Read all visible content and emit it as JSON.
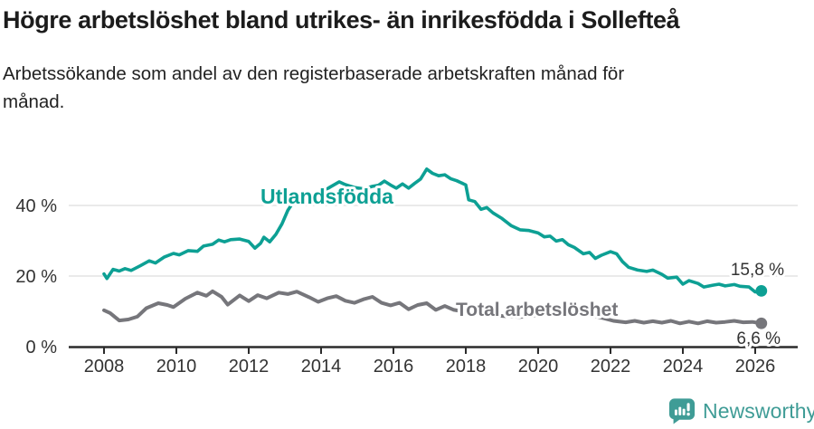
{
  "title": "Högre arbetslöshet bland utrikes- än inrikesfödda i Sollefteå",
  "subtitle": "Arbetssökande som andel av den registerbaserade arbetskraften månad för månad.",
  "footer": {
    "brand": "Newsworthy"
  },
  "colors": {
    "foreign_line": "#0da094",
    "total_line": "#76767b",
    "axis": "#2b2b2b",
    "gridline": "#dddddd",
    "tick_text": "#333333",
    "value_label": "#333333",
    "logo": "#3f9c96",
    "title_text": "#1c1c1c"
  },
  "chart_data": {
    "type": "line",
    "title": "Högre arbetslöshet bland utrikes- än inrikesfödda i Sollefteå",
    "subtitle": "Arbetssökande som andel av den registerbaserade arbetskraften månad för månad.",
    "x_axis": {
      "ticks": [
        2008,
        2010,
        2012,
        2014,
        2016,
        2018,
        2020,
        2022,
        2024,
        2026
      ],
      "range": [
        2007.0,
        2027.2
      ]
    },
    "y_axis": {
      "ticks": [
        {
          "value": 0,
          "label": "0 %"
        },
        {
          "value": 20,
          "label": "20 %"
        },
        {
          "value": 40,
          "label": "40 %"
        }
      ],
      "gridlines": [
        20,
        40
      ],
      "range": [
        0,
        52
      ],
      "grid_on": true
    },
    "legend_position": "inline-labels",
    "series": [
      {
        "name": "Utlandsfödda",
        "end_label": "15,8 %",
        "end_value": 15.8,
        "points": [
          [
            2008.0,
            20.6
          ],
          [
            2008.08,
            19.3
          ],
          [
            2008.25,
            21.9
          ],
          [
            2008.42,
            21.4
          ],
          [
            2008.58,
            22.1
          ],
          [
            2008.75,
            21.6
          ],
          [
            2009.0,
            22.9
          ],
          [
            2009.25,
            24.3
          ],
          [
            2009.42,
            23.7
          ],
          [
            2009.67,
            25.4
          ],
          [
            2009.92,
            26.4
          ],
          [
            2010.08,
            26.0
          ],
          [
            2010.33,
            27.2
          ],
          [
            2010.58,
            27.0
          ],
          [
            2010.75,
            28.5
          ],
          [
            2011.0,
            29.0
          ],
          [
            2011.17,
            30.2
          ],
          [
            2011.33,
            29.7
          ],
          [
            2011.5,
            30.3
          ],
          [
            2011.75,
            30.5
          ],
          [
            2012.0,
            29.8
          ],
          [
            2012.17,
            27.9
          ],
          [
            2012.33,
            29.3
          ],
          [
            2012.42,
            31.0
          ],
          [
            2012.58,
            29.7
          ],
          [
            2012.75,
            31.8
          ],
          [
            2012.92,
            34.8
          ],
          [
            2013.08,
            38.6
          ],
          [
            2013.25,
            41.2
          ],
          [
            2013.5,
            42.4
          ],
          [
            2013.75,
            43.1
          ],
          [
            2014.0,
            43.6
          ],
          [
            2014.25,
            45.2
          ],
          [
            2014.5,
            46.7
          ],
          [
            2014.67,
            45.9
          ],
          [
            2014.92,
            45.1
          ],
          [
            2015.17,
            44.7
          ],
          [
            2015.42,
            45.4
          ],
          [
            2015.58,
            45.7
          ],
          [
            2015.75,
            46.9
          ],
          [
            2015.92,
            45.8
          ],
          [
            2016.08,
            44.9
          ],
          [
            2016.25,
            46.1
          ],
          [
            2016.42,
            44.9
          ],
          [
            2016.58,
            46.2
          ],
          [
            2016.75,
            47.5
          ],
          [
            2016.92,
            50.3
          ],
          [
            2017.08,
            49.1
          ],
          [
            2017.25,
            48.4
          ],
          [
            2017.42,
            48.7
          ],
          [
            2017.58,
            47.6
          ],
          [
            2017.75,
            47.0
          ],
          [
            2017.92,
            46.2
          ],
          [
            2018.0,
            45.8
          ],
          [
            2018.08,
            41.6
          ],
          [
            2018.25,
            41.1
          ],
          [
            2018.42,
            38.9
          ],
          [
            2018.58,
            39.4
          ],
          [
            2018.75,
            37.9
          ],
          [
            2019.0,
            36.3
          ],
          [
            2019.25,
            34.3
          ],
          [
            2019.5,
            33.1
          ],
          [
            2019.75,
            32.9
          ],
          [
            2020.0,
            32.2
          ],
          [
            2020.17,
            31.1
          ],
          [
            2020.33,
            31.3
          ],
          [
            2020.5,
            29.9
          ],
          [
            2020.67,
            30.3
          ],
          [
            2020.83,
            28.9
          ],
          [
            2021.0,
            28.1
          ],
          [
            2021.25,
            26.3
          ],
          [
            2021.42,
            26.7
          ],
          [
            2021.58,
            25.0
          ],
          [
            2021.75,
            25.9
          ],
          [
            2022.0,
            26.9
          ],
          [
            2022.17,
            26.3
          ],
          [
            2022.33,
            24.1
          ],
          [
            2022.5,
            22.5
          ],
          [
            2022.75,
            21.7
          ],
          [
            2023.0,
            21.3
          ],
          [
            2023.17,
            21.7
          ],
          [
            2023.42,
            20.5
          ],
          [
            2023.58,
            19.4
          ],
          [
            2023.83,
            19.7
          ],
          [
            2024.0,
            17.7
          ],
          [
            2024.17,
            18.7
          ],
          [
            2024.42,
            17.9
          ],
          [
            2024.58,
            16.9
          ],
          [
            2024.83,
            17.4
          ],
          [
            2025.0,
            17.7
          ],
          [
            2025.17,
            17.2
          ],
          [
            2025.42,
            17.6
          ],
          [
            2025.58,
            17.1
          ],
          [
            2025.83,
            16.9
          ],
          [
            2026.0,
            15.5
          ],
          [
            2026.17,
            15.8
          ]
        ]
      },
      {
        "name": "Total arbetslöshet",
        "end_label": "6,6 %",
        "end_value": 6.6,
        "points": [
          [
            2008.0,
            10.3
          ],
          [
            2008.17,
            9.5
          ],
          [
            2008.42,
            7.4
          ],
          [
            2008.67,
            7.7
          ],
          [
            2008.92,
            8.5
          ],
          [
            2009.17,
            10.9
          ],
          [
            2009.5,
            12.3
          ],
          [
            2009.75,
            11.8
          ],
          [
            2009.92,
            11.2
          ],
          [
            2010.25,
            13.6
          ],
          [
            2010.58,
            15.3
          ],
          [
            2010.83,
            14.4
          ],
          [
            2011.0,
            15.7
          ],
          [
            2011.25,
            14.1
          ],
          [
            2011.42,
            11.9
          ],
          [
            2011.75,
            14.5
          ],
          [
            2012.0,
            12.9
          ],
          [
            2012.25,
            14.6
          ],
          [
            2012.5,
            13.7
          ],
          [
            2012.83,
            15.3
          ],
          [
            2013.08,
            14.9
          ],
          [
            2013.33,
            15.6
          ],
          [
            2013.67,
            14.0
          ],
          [
            2013.92,
            12.7
          ],
          [
            2014.17,
            13.7
          ],
          [
            2014.42,
            14.3
          ],
          [
            2014.67,
            13.0
          ],
          [
            2014.92,
            12.4
          ],
          [
            2015.17,
            13.4
          ],
          [
            2015.42,
            14.1
          ],
          [
            2015.67,
            12.4
          ],
          [
            2015.92,
            11.7
          ],
          [
            2016.17,
            12.4
          ],
          [
            2016.42,
            10.6
          ],
          [
            2016.67,
            11.8
          ],
          [
            2016.92,
            12.3
          ],
          [
            2017.17,
            10.4
          ],
          [
            2017.42,
            11.5
          ],
          [
            2017.67,
            10.4
          ],
          [
            2017.92,
            10.0
          ],
          [
            2018.25,
            9.6
          ],
          [
            2018.5,
            9.1
          ],
          [
            2018.83,
            8.8
          ],
          [
            2019.17,
            8.6
          ],
          [
            2019.5,
            8.4
          ],
          [
            2019.83,
            8.7
          ],
          [
            2020.08,
            9.2
          ],
          [
            2020.33,
            10.8
          ],
          [
            2020.58,
            10.4
          ],
          [
            2020.92,
            10.0
          ],
          [
            2021.25,
            9.4
          ],
          [
            2021.5,
            8.8
          ],
          [
            2021.83,
            8.0
          ],
          [
            2022.08,
            7.3
          ],
          [
            2022.42,
            6.9
          ],
          [
            2022.67,
            7.3
          ],
          [
            2022.92,
            6.8
          ],
          [
            2023.17,
            7.2
          ],
          [
            2023.42,
            6.8
          ],
          [
            2023.67,
            7.3
          ],
          [
            2023.92,
            6.6
          ],
          [
            2024.17,
            7.1
          ],
          [
            2024.42,
            6.6
          ],
          [
            2024.67,
            7.2
          ],
          [
            2024.92,
            6.8
          ],
          [
            2025.17,
            7.0
          ],
          [
            2025.42,
            7.3
          ],
          [
            2025.67,
            6.9
          ],
          [
            2025.92,
            7.0
          ],
          [
            2026.17,
            6.6
          ]
        ]
      }
    ]
  }
}
